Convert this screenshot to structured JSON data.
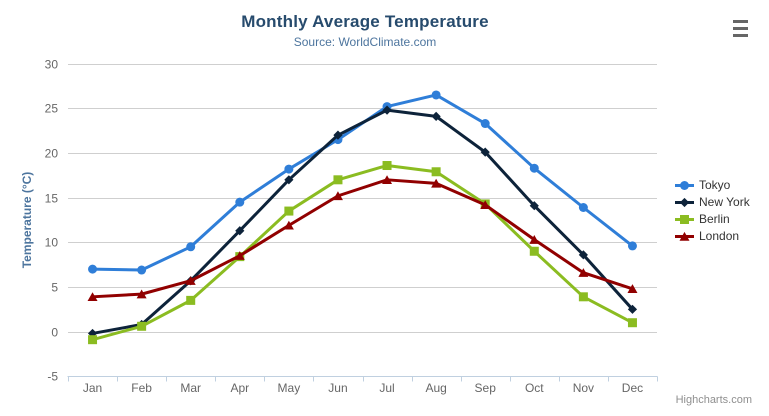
{
  "header": {
    "title": "Monthly Average Temperature",
    "subtitle": "Source: WorldClimate.com",
    "title_color": "#274b6d",
    "subtitle_color": "#4d759e"
  },
  "y_axis": {
    "title": "Temperature (°C)",
    "title_color": "#4d759e",
    "tick_labels": [
      "-5",
      "0",
      "5",
      "10",
      "15",
      "20",
      "25",
      "30"
    ],
    "label_color": "#666666"
  },
  "x_axis": {
    "label_color": "#666666",
    "line_color": "#c0d0e0"
  },
  "grid_color": "#cfcfcf",
  "credits": {
    "label": "Highcharts.com",
    "color": "#8f8f8f"
  },
  "context_menu": {
    "icon": "hamburger-menu-icon",
    "bar_color": "#666666"
  },
  "chart_data": {
    "type": "line",
    "title": "Monthly Average Temperature",
    "subtitle": "Source: WorldClimate.com",
    "categories": [
      "Jan",
      "Feb",
      "Mar",
      "Apr",
      "May",
      "Jun",
      "Jul",
      "Aug",
      "Sep",
      "Oct",
      "Nov",
      "Dec"
    ],
    "series": [
      {
        "name": "Tokyo",
        "color": "#2f7ed8",
        "marker": "circle",
        "values": [
          7.0,
          6.9,
          9.5,
          14.5,
          18.2,
          21.5,
          25.2,
          26.5,
          23.3,
          18.3,
          13.9,
          9.6
        ]
      },
      {
        "name": "New York",
        "color": "#0d233a",
        "marker": "diamond",
        "values": [
          -0.2,
          0.8,
          5.7,
          11.3,
          17.0,
          22.0,
          24.8,
          24.1,
          20.1,
          14.1,
          8.6,
          2.5
        ]
      },
      {
        "name": "Berlin",
        "color": "#8bbc21",
        "marker": "square",
        "values": [
          -0.9,
          0.6,
          3.5,
          8.4,
          13.5,
          17.0,
          18.6,
          17.9,
          14.3,
          9.0,
          3.9,
          1.0
        ]
      },
      {
        "name": "London",
        "color": "#910000",
        "marker": "triangle",
        "values": [
          3.9,
          4.2,
          5.7,
          8.5,
          11.9,
          15.2,
          17.0,
          16.6,
          14.2,
          10.3,
          6.6,
          4.8
        ]
      }
    ],
    "xlabel": "",
    "ylabel": "Temperature (°C)",
    "ylim": [
      -5,
      30
    ],
    "ytick_step": 5,
    "grid": true,
    "legend_position": "right"
  }
}
